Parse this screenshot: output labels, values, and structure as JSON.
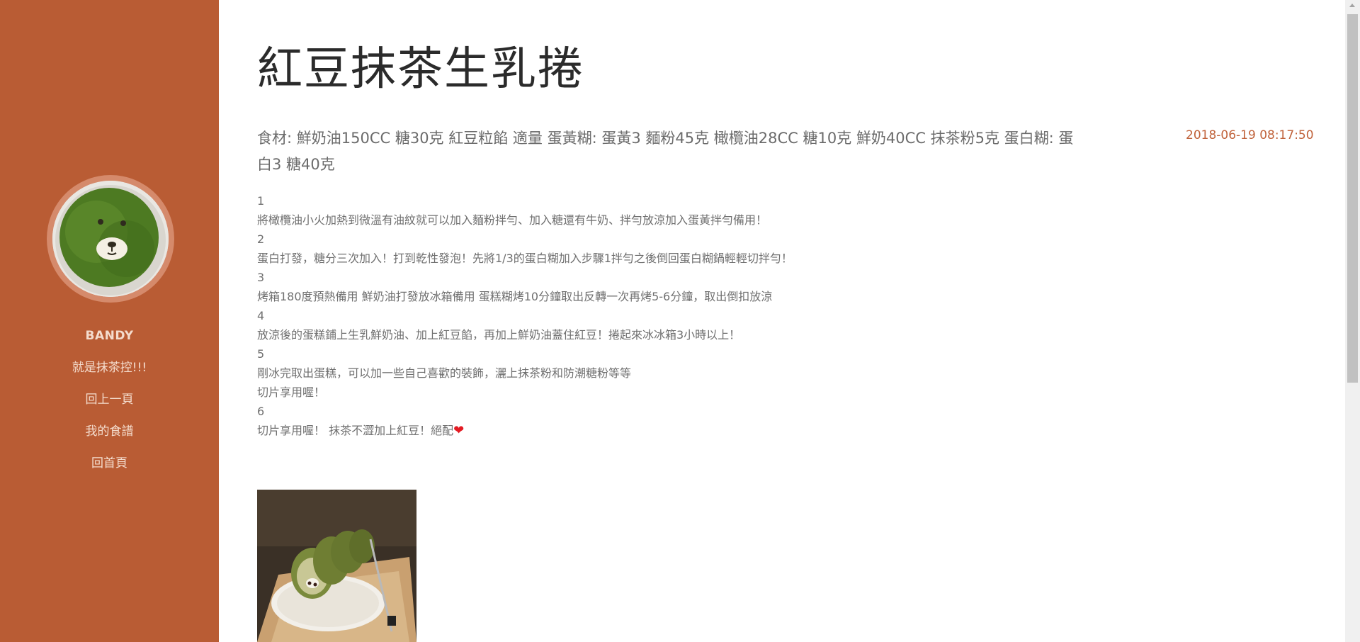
{
  "sidebar": {
    "user_name": "BANDY",
    "tagline": "就是抹茶控!!!",
    "nav": [
      {
        "label": "回上一頁"
      },
      {
        "label": "我的食譜"
      },
      {
        "label": "回首頁"
      }
    ]
  },
  "recipe": {
    "title": "紅豆抹茶生乳捲",
    "ingredients": "食材: 鮮奶油150CC 糖30克 紅豆粒餡 適量 蛋黃糊: 蛋黃3 麵粉45克 橄欖油28CC 糖10克 鮮奶40CC 抹茶粉5克 蛋白糊: 蛋白3 糖40克",
    "timestamp": "2018-06-19 08:17:50",
    "steps": [
      {
        "number": "1",
        "lines": [
          "將橄欖油小火加熱到微溫有油紋就可以加入麵粉拌勻、加入糖還有牛奶、拌勻放涼加入蛋黃拌勻備用！"
        ]
      },
      {
        "number": "2",
        "lines": [
          "蛋白打發，糖分三次加入！打到乾性發泡！先將1/3的蛋白糊加入步驟1拌勻之後倒回蛋白糊鍋輕輕切拌勻！"
        ]
      },
      {
        "number": "3",
        "lines": [
          "烤箱180度預熱備用 鮮奶油打發放冰箱備用 蛋糕糊烤10分鐘取出反轉一次再烤5-6分鐘，取出倒扣放涼"
        ]
      },
      {
        "number": "4",
        "lines": [
          "放涼後的蛋糕鋪上生乳鮮奶油、加上紅豆餡，再加上鮮奶油蓋住紅豆！捲起來冰冰箱3小時以上！"
        ]
      },
      {
        "number": "5",
        "lines": [
          "剛冰完取出蛋糕，可以加一些自己喜歡的裝飾，灑上抹茶粉和防潮糖粉等等",
          "切片享用喔！"
        ]
      },
      {
        "number": "6",
        "lines": [
          "切片享用喔！ 抹茶不澀加上紅豆！絕配"
        ]
      }
    ],
    "heart_icon": "heart-icon"
  },
  "colors": {
    "sidebar_bg": "#b95c34",
    "accent": "#c0623a",
    "heart": "#e31b23"
  }
}
